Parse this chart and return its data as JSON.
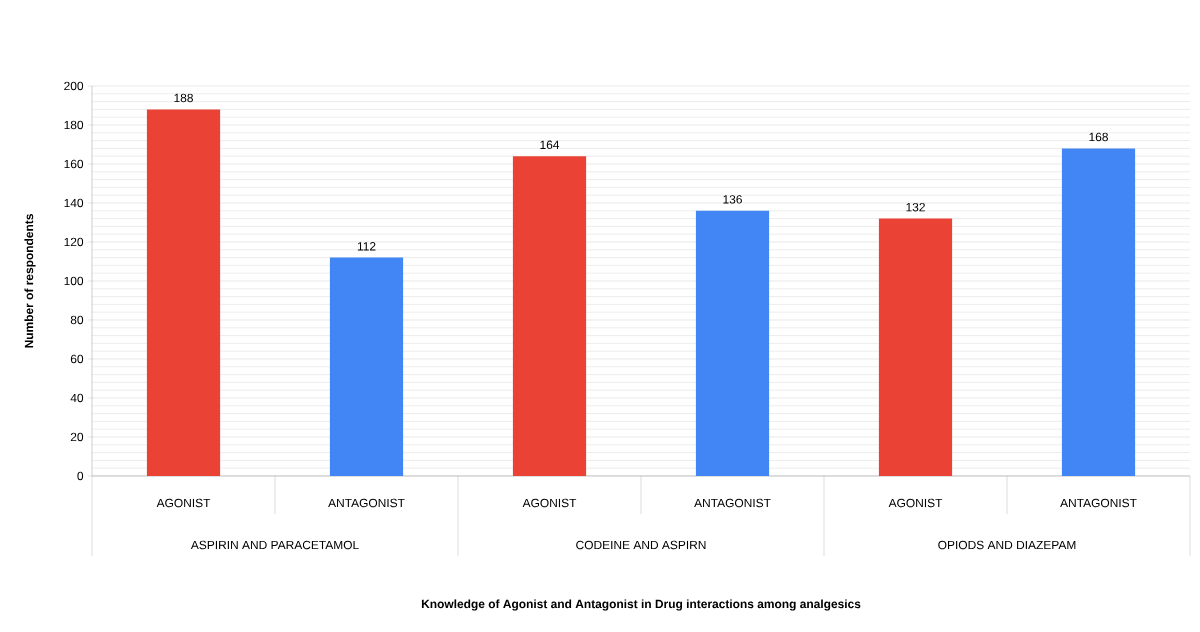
{
  "chart_data": {
    "type": "bar",
    "categories": [
      "AGONIST",
      "ANTAGONIST",
      "AGONIST",
      "ANTAGONIST",
      "AGONIST",
      "ANTAGONIST"
    ],
    "values": [
      188,
      112,
      164,
      136,
      132,
      168
    ],
    "colors": [
      "#ea4335",
      "#4285f4",
      "#ea4335",
      "#4285f4",
      "#ea4335",
      "#4285f4"
    ],
    "ylabel": "Number of respondents",
    "annotations": [
      "ASPIRIN AND PARACETAMOL",
      "CODEINE AND ASPIRN",
      "OPIODS AND DIAZEPAM",
      "Knowledge of Agonist and Antagonist in Drug interactions among analgesics"
    ],
    "ylim": [
      0,
      200
    ],
    "yticks": [
      0,
      20,
      40,
      60,
      80,
      100,
      120,
      140,
      160,
      180,
      200
    ],
    "grid": true,
    "data_labels": true
  }
}
